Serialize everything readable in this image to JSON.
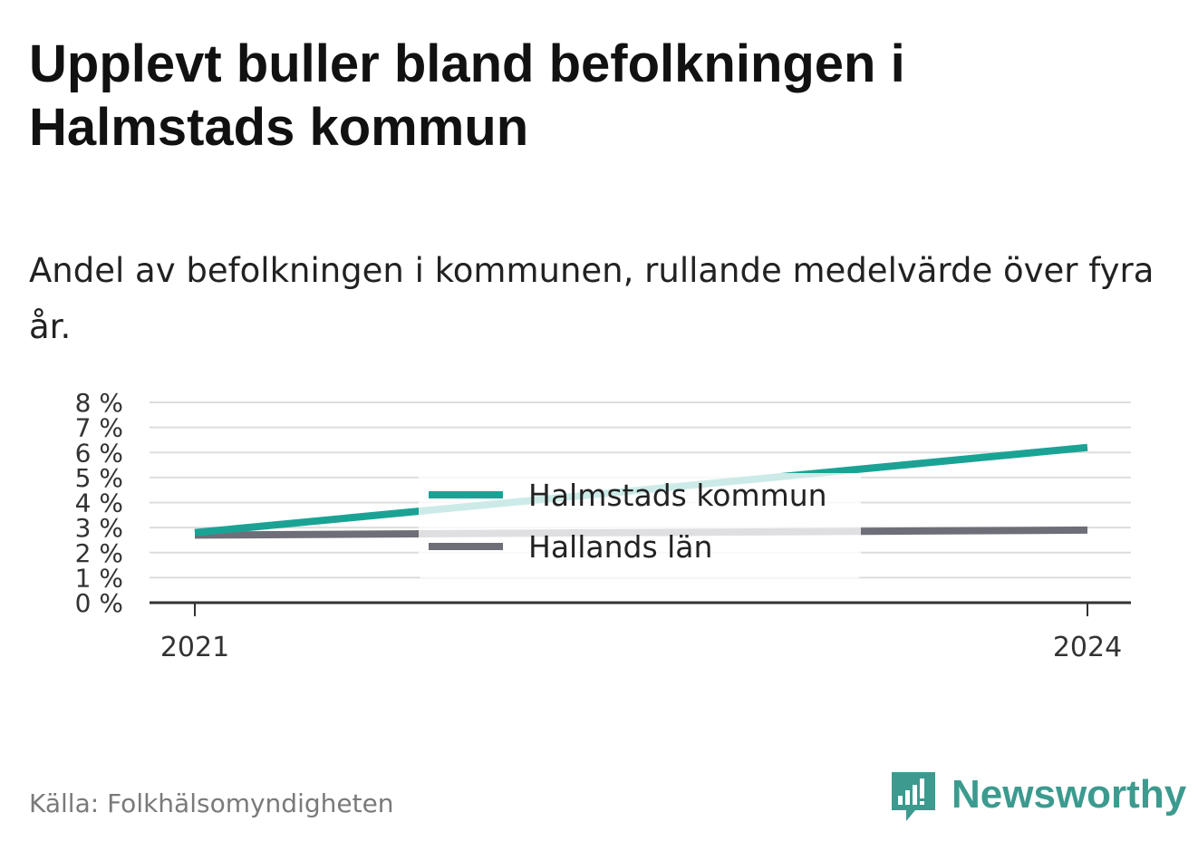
{
  "title": "Upplevt buller bland befolkningen i Halmstads kommun",
  "subtitle": "Andel av befolkningen i kommunen, rullande medelvärde över fyra år.",
  "source": "Källa: Folkhälsomyndigheten",
  "brand": "Newsworthy",
  "chart_data": {
    "type": "line",
    "x": [
      "2021",
      "2024"
    ],
    "ylim": [
      0,
      8
    ],
    "y_ticks": [
      "0 %",
      "1 %",
      "2 %",
      "3 %",
      "4 %",
      "5 %",
      "6 %",
      "7 %",
      "8 %"
    ],
    "grid": true,
    "legend_position": "center",
    "series": [
      {
        "name": "Halmstads kommun",
        "color": "#1aa395",
        "values": [
          2.8,
          6.2
        ]
      },
      {
        "name": "Hallands län",
        "color": "#6e6e78",
        "values": [
          2.7,
          2.9
        ]
      }
    ]
  }
}
